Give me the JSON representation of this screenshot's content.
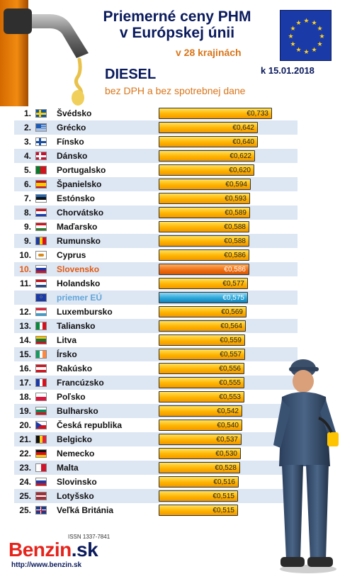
{
  "header": {
    "title_line1": "Priemerné ceny PHM",
    "title_line2": "v Európskej únii",
    "subtitle": "v 28 krajinách",
    "date": "k 15.01.2018",
    "fuel": "DIESEL",
    "note": "bez DPH a bez spotrebnej dane"
  },
  "footer": {
    "issn": "ISSN 1337-7841",
    "brand_name": "Benzin",
    "brand_tld": ".sk",
    "url": "http://www.benzin.sk"
  },
  "colors": {
    "bar_default": "#ffb400",
    "bar_highlight_slovakia": "#f07014",
    "bar_eu_average": "#2aa6d8",
    "row_alt": "#dde6f3",
    "title": "#0a1a5c",
    "accent": "#d9751a"
  },
  "chart_data": {
    "type": "bar",
    "orientation": "horizontal",
    "currency": "€",
    "categories": [
      "Švédsko",
      "Grécko",
      "Fínsko",
      "Dánsko",
      "Portugalsko",
      "Španielsko",
      "Estónsko",
      "Chorvátsko",
      "Maďarsko",
      "Rumunsko",
      "Cyprus",
      "Slovensko",
      "Holandsko",
      "priemer EÚ",
      "Luxembursko",
      "Taliansko",
      "Litva",
      "Írsko",
      "Rakúsko",
      "Francúzsko",
      "Poľsko",
      "Bulharsko",
      "Česká republika",
      "Belgicko",
      "Nemecko",
      "Malta",
      "Slovinsko",
      "Lotyšsko",
      "Veľká Británia"
    ],
    "ranks": [
      "1.",
      "2.",
      "3.",
      "4.",
      "5.",
      "6.",
      "7.",
      "8.",
      "9.",
      "9.",
      "10.",
      "10.",
      "11.",
      "",
      "12.",
      "13.",
      "14.",
      "15.",
      "16.",
      "17.",
      "18.",
      "19.",
      "20.",
      "21.",
      "22.",
      "23.",
      "24.",
      "25.",
      "25."
    ],
    "values": [
      0.733,
      0.642,
      0.64,
      0.622,
      0.62,
      0.594,
      0.593,
      0.589,
      0.588,
      0.588,
      0.586,
      0.586,
      0.577,
      0.575,
      0.569,
      0.564,
      0.559,
      0.557,
      0.556,
      0.555,
      0.553,
      0.542,
      0.54,
      0.537,
      0.53,
      0.528,
      0.516,
      0.515,
      0.515
    ],
    "labels": [
      "€0,733",
      "€0,642",
      "€0,640",
      "€0,622",
      "€0,620",
      "€0,594",
      "€0,593",
      "€0,589",
      "€0,588",
      "€0,588",
      "€0,586",
      "€0,586",
      "€0,577",
      "€0,575",
      "€0,569",
      "€0,564",
      "€0,559",
      "€0,557",
      "€0,556",
      "€0,555",
      "€0,553",
      "€0,542",
      "€0,540",
      "€0,537",
      "€0,530",
      "€0,528",
      "€0,516",
      "€0,515",
      "€0,515"
    ],
    "highlight": {
      "Slovensko": "slovakia",
      "priemer EÚ": "eu_average"
    },
    "flags": [
      "sweden",
      "greece",
      "finland",
      "denmark",
      "portugal",
      "spain",
      "estonia",
      "croatia",
      "hungary",
      "romania",
      "cyprus",
      "slovakia",
      "netherlands",
      "eu",
      "luxembourg",
      "italy",
      "lithuania",
      "ireland",
      "austria",
      "france",
      "poland",
      "bulgaria",
      "czech-republic",
      "belgium",
      "germany",
      "malta",
      "slovenia",
      "latvia",
      "united-kingdom"
    ]
  }
}
